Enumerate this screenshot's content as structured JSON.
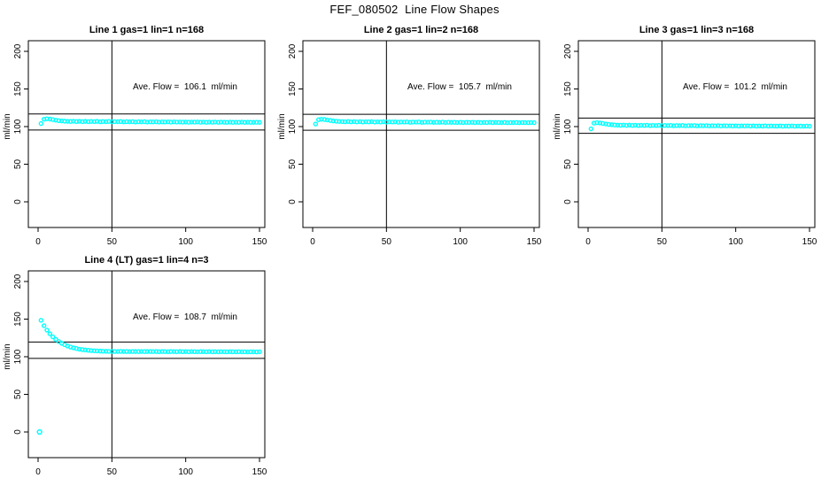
{
  "page_title": "FEF_080502  Line Flow Shapes",
  "axes": {
    "ylabel": "ml/min",
    "yticks": [
      0,
      50,
      100,
      150,
      200
    ],
    "xticks": [
      0,
      50,
      100,
      150
    ],
    "ylim": [
      0,
      200
    ],
    "xlim": [
      0,
      150
    ],
    "grid": false,
    "marker_color": "#00FFFF",
    "line_color": "#000000"
  },
  "chart_data": [
    {
      "type": "scatter",
      "title": "Line 1 gas=1 lin=1 n=168",
      "ave_flow": 106.1,
      "ave_flow_text": "Ave. Flow =  106.1  ml/min",
      "n": 168,
      "ref_vertical_x": 50,
      "ref_upper": 116.7,
      "ref_lower": 95.5,
      "x_start": 2,
      "x_step": 2,
      "y": [
        104.0,
        109.8,
        110.4,
        110.0,
        109.3,
        108.5,
        107.9,
        107.5,
        107.2,
        107.0,
        106.8,
        107.1,
        106.7,
        107.0,
        106.6,
        106.9,
        106.5,
        106.8,
        106.6,
        106.9,
        106.4,
        106.7,
        106.5,
        106.8,
        106.3,
        106.6,
        106.5,
        106.7,
        106.2,
        106.5,
        106.4,
        106.6,
        106.1,
        106.4,
        106.3,
        106.5,
        106.0,
        106.3,
        106.2,
        106.4,
        106.0,
        106.2,
        106.1,
        106.3,
        105.9,
        106.2,
        106.0,
        106.1,
        105.9,
        106.1,
        105.8,
        106.0,
        105.9,
        106.1,
        105.8,
        106.0,
        105.7,
        105.9,
        105.8,
        106.0,
        105.7,
        105.9,
        105.8,
        105.7,
        105.9,
        105.6,
        105.8,
        105.7,
        105.9,
        105.6,
        105.8,
        105.7,
        105.6,
        105.8,
        105.6
      ],
      "extra_points": []
    },
    {
      "type": "scatter",
      "title": "Line 2 gas=1 lin=2 n=168",
      "ave_flow": 105.7,
      "ave_flow_text": "Ave. Flow =  105.7  ml/min",
      "n": 168,
      "ref_vertical_x": 50,
      "ref_upper": 116.3,
      "ref_lower": 95.1,
      "x_start": 2,
      "x_step": 2,
      "y": [
        103.4,
        109.2,
        109.8,
        109.4,
        108.8,
        108.1,
        107.5,
        107.1,
        106.8,
        106.6,
        106.4,
        106.7,
        106.3,
        106.6,
        106.2,
        106.5,
        106.1,
        106.4,
        106.2,
        106.5,
        106.0,
        106.3,
        106.1,
        106.4,
        105.9,
        106.2,
        106.1,
        106.3,
        105.8,
        106.1,
        106.0,
        106.2,
        105.7,
        106.0,
        105.9,
        106.1,
        105.6,
        105.9,
        105.8,
        106.0,
        105.6,
        105.8,
        105.7,
        105.9,
        105.5,
        105.8,
        105.6,
        105.7,
        105.5,
        105.7,
        105.4,
        105.6,
        105.5,
        105.7,
        105.4,
        105.6,
        105.3,
        105.5,
        105.4,
        105.6,
        105.3,
        105.5,
        105.4,
        105.3,
        105.5,
        105.2,
        105.4,
        105.3,
        105.5,
        105.2,
        105.4,
        105.3,
        105.2,
        105.4,
        105.2
      ],
      "extra_points": []
    },
    {
      "type": "scatter",
      "title": "Line 3 gas=1 lin=3 n=168",
      "ave_flow": 101.2,
      "ave_flow_text": "Ave. Flow =  101.2  ml/min",
      "n": 168,
      "ref_vertical_x": 50,
      "ref_upper": 111.3,
      "ref_lower": 91.1,
      "x_start": 2,
      "x_step": 2,
      "y": [
        97.0,
        104.6,
        105.2,
        104.8,
        104.2,
        103.5,
        102.9,
        102.5,
        102.1,
        101.9,
        101.7,
        102.0,
        101.6,
        101.9,
        101.5,
        101.8,
        101.4,
        101.7,
        101.5,
        101.8,
        101.3,
        101.6,
        101.4,
        101.7,
        101.2,
        101.5,
        101.4,
        101.6,
        101.1,
        101.4,
        101.3,
        101.5,
        101.0,
        101.3,
        101.2,
        101.4,
        100.9,
        101.2,
        101.1,
        101.3,
        100.9,
        101.1,
        101.0,
        101.2,
        100.8,
        101.1,
        100.9,
        101.0,
        100.8,
        101.0,
        100.7,
        100.9,
        100.8,
        101.0,
        100.7,
        100.9,
        100.6,
        100.8,
        100.7,
        100.9,
        100.6,
        100.8,
        100.7,
        100.6,
        100.8,
        100.5,
        100.7,
        100.6,
        100.8,
        100.5,
        100.7,
        100.6,
        100.5,
        100.7,
        100.5
      ],
      "extra_points": []
    },
    {
      "type": "scatter",
      "title": "Line 4 (LT) gas=1 lin=4 n=3",
      "ave_flow": 108.7,
      "ave_flow_text": "Ave. Flow =  108.7  ml/min",
      "n": 3,
      "ref_vertical_x": 50,
      "ref_upper": 119.6,
      "ref_lower": 97.8,
      "x_start": 2,
      "x_step": 2,
      "y": [
        148.4,
        141.3,
        135.4,
        130.5,
        126.4,
        123.0,
        120.2,
        117.8,
        115.9,
        114.2,
        112.9,
        111.8,
        110.9,
        110.1,
        109.5,
        109.0,
        108.6,
        108.2,
        107.9,
        107.7,
        107.5,
        107.3,
        107.2,
        107.1,
        107.0,
        107.0,
        106.9,
        107.1,
        106.9,
        107.0,
        106.8,
        107.0,
        106.9,
        106.8,
        107.0,
        106.8,
        106.9,
        107.0,
        106.8,
        106.9,
        106.7,
        106.9,
        106.8,
        106.7,
        106.9,
        106.8,
        106.7,
        106.9,
        106.7,
        106.8,
        106.6,
        106.8,
        106.7,
        106.6,
        106.8,
        106.7,
        106.6,
        106.8,
        106.6,
        106.7,
        106.5,
        106.7,
        106.6,
        106.5,
        106.7,
        106.6,
        106.5,
        106.7,
        106.5,
        106.6,
        106.4,
        106.6,
        106.5,
        106.4,
        106.6
      ],
      "extra_points": [
        [
          1,
          0
        ]
      ]
    }
  ]
}
